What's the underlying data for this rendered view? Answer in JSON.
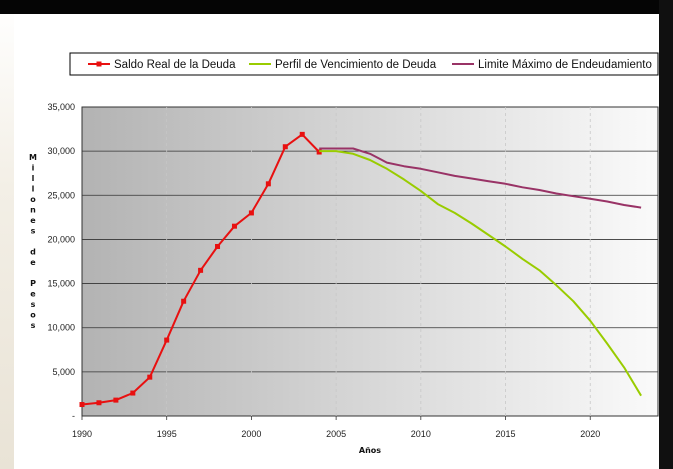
{
  "chart_data": {
    "type": "line",
    "title": "",
    "xlabel": "Años",
    "ylabel": "Millones de Pesos",
    "xlim": [
      1990,
      2024
    ],
    "ylim": [
      0,
      35000
    ],
    "x_ticks": [
      "1990",
      "1995",
      "2000",
      "2005",
      "2010",
      "2015",
      "2020"
    ],
    "y_ticks": [
      "35,000",
      "30,000",
      "25,000",
      "20,000",
      "15,000",
      "10,000",
      "5,000",
      "-"
    ],
    "grid": "horizontal-solid, vertical-dashed",
    "legend_position": "top",
    "series": [
      {
        "name": "Saldo Real de la Deuda",
        "color": "#e81010",
        "marker": "square",
        "x": [
          1990,
          1991,
          1992,
          1993,
          1994,
          1995,
          1996,
          1997,
          1998,
          1999,
          2000,
          2001,
          2002,
          2003,
          2004
        ],
        "y": [
          1300,
          1500,
          1800,
          2600,
          4400,
          8600,
          13000,
          16500,
          19200,
          21500,
          23000,
          26300,
          30500,
          31900,
          29900
        ]
      },
      {
        "name": "Perfil de Vencimiento de Deuda",
        "color": "#99cc00",
        "marker": "none",
        "x": [
          2004,
          2005,
          2006,
          2007,
          2008,
          2009,
          2010,
          2011,
          2012,
          2013,
          2014,
          2015,
          2016,
          2017,
          2018,
          2019,
          2020,
          2021,
          2022,
          2023
        ],
        "y": [
          30000,
          30000,
          29700,
          29000,
          28000,
          26800,
          25500,
          24000,
          23000,
          21800,
          20500,
          19200,
          17800,
          16500,
          14800,
          13000,
          10800,
          8200,
          5500,
          2300
        ]
      },
      {
        "name": "Limite Máximo de Endeudamiento",
        "color": "#993366",
        "marker": "none",
        "x": [
          2004,
          2005,
          2006,
          2007,
          2008,
          2009,
          2010,
          2011,
          2012,
          2013,
          2014,
          2015,
          2016,
          2017,
          2018,
          2019,
          2020,
          2021,
          2022,
          2023
        ],
        "y": [
          30300,
          30300,
          30300,
          29700,
          28700,
          28300,
          28000,
          27600,
          27200,
          26900,
          26600,
          26300,
          25900,
          25600,
          25200,
          24900,
          24600,
          24300,
          23900,
          23600
        ]
      }
    ]
  }
}
